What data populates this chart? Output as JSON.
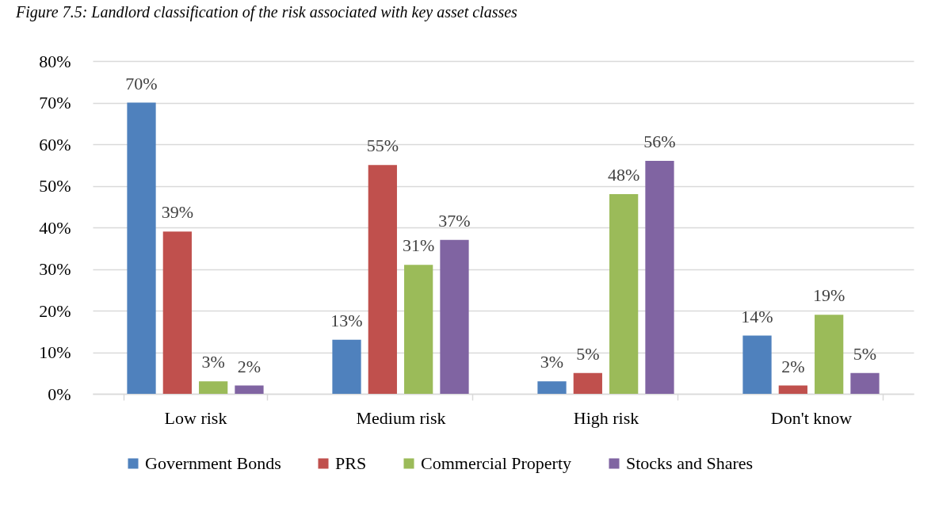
{
  "chart_data": {
    "type": "bar",
    "title": "Figure 7.5: Landlord classification of the risk associated with key asset classes",
    "categories": [
      "Low risk",
      "Medium risk",
      "High risk",
      "Don't know"
    ],
    "series": [
      {
        "name": "Government Bonds",
        "color": "#4f81bd",
        "values": [
          70,
          13,
          3,
          14
        ],
        "value_labels": [
          "70%",
          "13%",
          "3%",
          "14%"
        ]
      },
      {
        "name": "PRS",
        "color": "#c0504d",
        "values": [
          39,
          55,
          5,
          2
        ],
        "value_labels": [
          "39%",
          "55%",
          "5%",
          "2%"
        ]
      },
      {
        "name": "Commercial Property",
        "color": "#9bbb59",
        "values": [
          3,
          31,
          48,
          19
        ],
        "value_labels": [
          "3%",
          "31%",
          "48%",
          "19%"
        ]
      },
      {
        "name": "Stocks and Shares",
        "color": "#8064a2",
        "values": [
          2,
          37,
          56,
          5
        ],
        "value_labels": [
          "2%",
          "37%",
          "56%",
          "5%"
        ]
      }
    ],
    "ylim": [
      0,
      80
    ],
    "yticks": [
      {
        "value": 0,
        "label": "0%"
      },
      {
        "value": 10,
        "label": "10%"
      },
      {
        "value": 20,
        "label": "20%"
      },
      {
        "value": 30,
        "label": "30%"
      },
      {
        "value": 40,
        "label": "40%"
      },
      {
        "value": 50,
        "label": "50%"
      },
      {
        "value": 60,
        "label": "60%"
      },
      {
        "value": 70,
        "label": "70%"
      },
      {
        "value": 80,
        "label": "80%"
      }
    ],
    "grid": "y",
    "legend": "bottom"
  }
}
